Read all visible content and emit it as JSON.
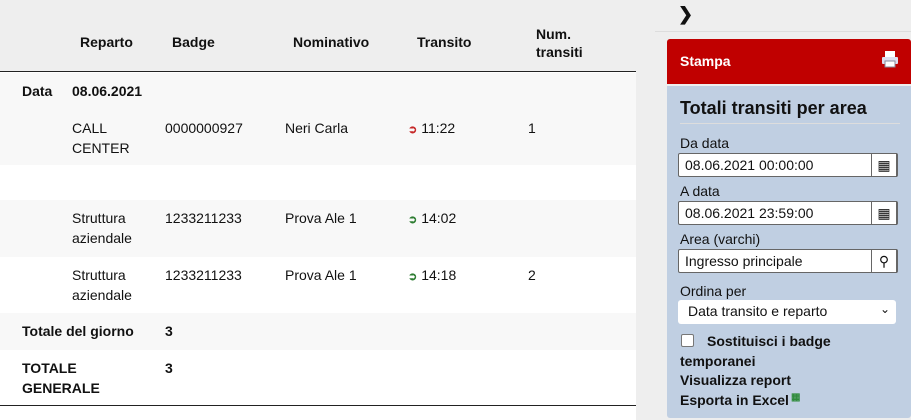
{
  "table": {
    "headers": [
      "Reparto",
      "Badge",
      "Nominativo",
      "Transito",
      "Num.\ntransiti"
    ],
    "date_label": "Data",
    "date_value": "08.06.2021",
    "rows": [
      {
        "reparto": "CALL\nCENTER",
        "badge": "0000000927",
        "nominativo": "Neri Carla",
        "direction": "exit",
        "transito": "11:22",
        "num": "1"
      },
      {
        "reparto": "Struttura\naziendale",
        "badge": "1233211233",
        "nominativo": "Prova Ale 1",
        "direction": "entry",
        "transito": "14:02",
        "num": ""
      },
      {
        "reparto": "Struttura\naziendale",
        "badge": "1233211233",
        "nominativo": "Prova Ale 1",
        "direction": "entry",
        "transito": "14:18",
        "num": "2"
      }
    ],
    "day_total_label": "Totale del giorno",
    "day_total": "3",
    "grand_total_label": "TOTALE\nGENERALE",
    "grand_total": "3",
    "colors": {
      "exit": "#c62828",
      "entry": "#2e7d32"
    }
  },
  "sidebar": {
    "stampa": "Stampa",
    "title": "Totali transiti per area",
    "da_data_label": "Da data",
    "da_data": "08.06.2021 00:00:00",
    "a_data_label": "A data",
    "a_data": "08.06.2021 23:59:00",
    "area_label": "Area (varchi)",
    "area": "Ingresso principale",
    "ordina_label": "Ordina per",
    "ordina": "Data transito e reparto",
    "checkbox_label": "Sostituisci i badge temporanei",
    "checked": false,
    "visualizza": "Visualizza report",
    "esporta": "Esporta in Excel",
    "accent": "#c00000"
  }
}
